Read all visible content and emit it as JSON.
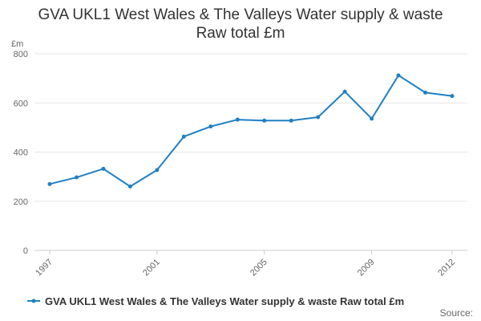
{
  "chart_data": {
    "type": "line",
    "title_lines": [
      "GVA UKL1 West Wales & The Valleys Water supply & waste",
      "Raw total £m"
    ],
    "y_unit": "£m",
    "x": [
      1997,
      1998,
      1999,
      2000,
      2001,
      2002,
      2003,
      2004,
      2005,
      2006,
      2007,
      2008,
      2009,
      2010,
      2011,
      2012
    ],
    "x_tick_labels": [
      "1997",
      "2001",
      "2005",
      "2009",
      "2012"
    ],
    "series": [
      {
        "name": "GVA UKL1 West Wales & The Valleys Water supply & waste Raw total £m",
        "values": [
          270,
          297,
          332,
          260,
          327,
          463,
          504,
          532,
          528,
          528,
          542,
          646,
          536,
          712,
          642,
          628
        ],
        "color": "#1f80c4"
      }
    ],
    "ylim": [
      0,
      800
    ],
    "y_ticks": [
      0,
      200,
      400,
      600,
      800
    ],
    "grid": true,
    "legend_position": "bottom-left"
  },
  "source_label": "Source:"
}
